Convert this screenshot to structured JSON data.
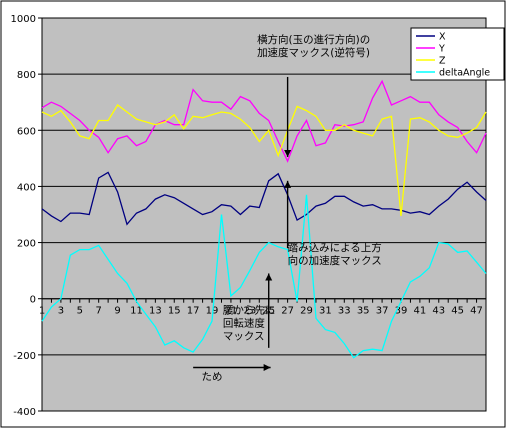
{
  "chart_data": {
    "type": "line",
    "title": "",
    "xlabel": "",
    "ylabel": "",
    "ylim": [
      -400,
      1000
    ],
    "yticks": [
      -400,
      -200,
      0,
      200,
      400,
      600,
      800,
      1000
    ],
    "xlim": [
      1,
      48
    ],
    "xticks": [
      1,
      3,
      5,
      7,
      9,
      11,
      13,
      15,
      17,
      19,
      21,
      23,
      25,
      27,
      29,
      31,
      33,
      35,
      37,
      39,
      41,
      43,
      45,
      47
    ],
    "grid": "horizontal",
    "plot_background": "#c0c0c0",
    "legend_position": "top-right",
    "x": [
      1,
      2,
      3,
      4,
      5,
      6,
      7,
      8,
      9,
      10,
      11,
      12,
      13,
      14,
      15,
      16,
      17,
      18,
      19,
      20,
      21,
      22,
      23,
      24,
      25,
      26,
      27,
      28,
      29,
      30,
      31,
      32,
      33,
      34,
      35,
      36,
      37,
      38,
      39,
      40,
      41,
      42,
      43,
      44,
      45,
      46,
      47,
      48
    ],
    "series": [
      {
        "name": "X",
        "color": "#000080",
        "values": [
          320,
          295,
          275,
          305,
          305,
          300,
          430,
          450,
          380,
          265,
          305,
          320,
          355,
          370,
          360,
          340,
          320,
          300,
          310,
          335,
          330,
          300,
          330,
          325,
          420,
          445,
          370,
          280,
          300,
          330,
          340,
          365,
          365,
          345,
          330,
          335,
          320,
          320,
          315,
          305,
          310,
          300,
          330,
          355,
          390,
          415,
          380,
          350
        ]
      },
      {
        "name": "Y",
        "color": "#ff00ff",
        "values": [
          680,
          700,
          685,
          660,
          635,
          600,
          575,
          520,
          570,
          580,
          545,
          560,
          620,
          635,
          620,
          620,
          745,
          705,
          700,
          700,
          675,
          720,
          705,
          660,
          635,
          560,
          490,
          580,
          635,
          545,
          555,
          620,
          615,
          620,
          630,
          715,
          775,
          690,
          705,
          720,
          700,
          700,
          655,
          630,
          610,
          560,
          520,
          590
        ]
      },
      {
        "name": "Z",
        "color": "#ffff00",
        "values": [
          665,
          650,
          670,
          630,
          580,
          570,
          635,
          635,
          690,
          665,
          640,
          630,
          620,
          630,
          655,
          605,
          650,
          645,
          655,
          665,
          660,
          640,
          610,
          560,
          600,
          510,
          600,
          685,
          670,
          650,
          600,
          600,
          620,
          600,
          590,
          580,
          640,
          650,
          295,
          640,
          645,
          630,
          600,
          580,
          575,
          590,
          610,
          665
        ]
      },
      {
        "name": "deltaAngle",
        "color": "#00ffff",
        "values": [
          -80,
          -30,
          0,
          155,
          175,
          175,
          190,
          140,
          90,
          55,
          -10,
          -55,
          -100,
          -165,
          -150,
          -175,
          -190,
          -145,
          -80,
          300,
          10,
          40,
          100,
          165,
          200,
          185,
          175,
          -10,
          370,
          -70,
          -110,
          -120,
          -160,
          -210,
          -185,
          -180,
          -185,
          -80,
          -10,
          60,
          80,
          110,
          200,
          195,
          165,
          170,
          130,
          90
        ]
      }
    ],
    "annotations": [
      {
        "text": "横方向(玉の進行方向)の\n加速度マックス(逆符号)",
        "x": 28,
        "y": 840
      },
      {
        "text": "踏み込みによる上方\n向の加速度マックス",
        "x": 27,
        "y": 170
      },
      {
        "text": "腰から先に\n回転速度\nマックス",
        "x": 23,
        "y": -70
      },
      {
        "text": "ため",
        "x": 19,
        "y": -290
      }
    ]
  }
}
